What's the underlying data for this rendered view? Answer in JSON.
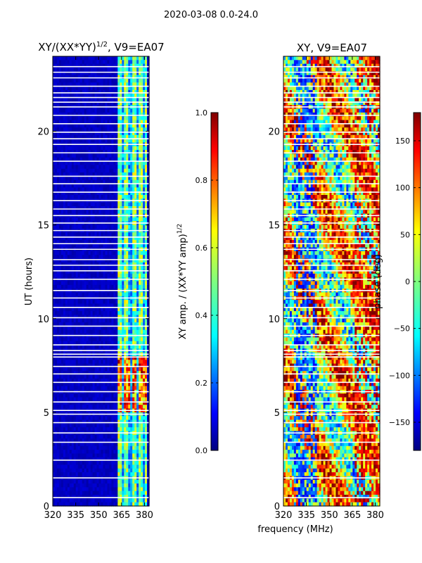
{
  "suptitle": "2020-03-08 0.0-24.0",
  "colors": {
    "jet": [
      "#00007f",
      "#0000ff",
      "#007fff",
      "#00ffff",
      "#7fff7f",
      "#ffff00",
      "#ff7f00",
      "#ff0000",
      "#7f0000"
    ],
    "gap": "#ffffff",
    "frame": "#000000"
  },
  "chart_data": [
    {
      "type": "heatmap",
      "title": "XY/(XX*YY)^1/2, V9=EA07",
      "title_main": "XY/(XX*YY)",
      "title_exp": "1/2",
      "title_rest": ", V9=EA07",
      "xlabel": "",
      "ylabel": "UT (hours)",
      "xlim": [
        320,
        383
      ],
      "ylim": [
        0,
        24
      ],
      "xticks": [
        320,
        335,
        350,
        365,
        380
      ],
      "yticks": [
        0,
        5,
        10,
        15,
        20
      ],
      "colorbar": {
        "label": "XY amp. / (XX*YY amp)^1/2",
        "label_main": "XY amp. / (XX*YY amp)",
        "label_exp": "1/2",
        "range": [
          0.0,
          1.0
        ],
        "ticks": [
          "0.0",
          "0.2",
          "0.4",
          "0.6",
          "0.8",
          "1.0"
        ],
        "tick_values": [
          0.0,
          0.2,
          0.4,
          0.6,
          0.8,
          1.0
        ]
      }
    },
    {
      "type": "heatmap",
      "title": "XY, V9=EA07",
      "xlabel": "frequency (MHz)",
      "ylabel": "",
      "xlim": [
        320,
        383
      ],
      "ylim": [
        0,
        24
      ],
      "xticks": [
        320,
        335,
        350,
        365,
        380
      ],
      "yticks": [
        0,
        5,
        10,
        15,
        20
      ],
      "colorbar": {
        "label": "phase (deg)",
        "range": [
          -180,
          180
        ],
        "ticks": [
          "−150",
          "−100",
          "−50",
          "0",
          "50",
          "100",
          "150"
        ],
        "tick_values": [
          -150,
          -100,
          -50,
          0,
          50,
          100,
          150
        ]
      }
    }
  ],
  "gaps_ut": [
    0.45,
    1.5,
    2.45,
    3.4,
    3.9,
    4.45,
    4.9,
    5.1,
    5.55,
    6.1,
    6.6,
    7.05,
    7.45,
    7.95,
    8.1,
    8.3,
    8.6,
    9.1,
    9.6,
    10.05,
    10.6,
    11.1,
    11.5,
    12.1,
    12.55,
    12.85,
    13.15,
    13.7,
    14.0,
    14.35,
    14.7,
    15.1,
    15.5,
    15.85,
    16.3,
    16.75,
    17.2,
    17.6,
    18.4,
    18.85,
    19.3,
    19.6,
    19.95,
    20.4,
    20.85,
    21.3,
    21.55,
    21.8,
    22.05,
    22.4,
    22.85,
    23.15,
    23.45
  ]
}
